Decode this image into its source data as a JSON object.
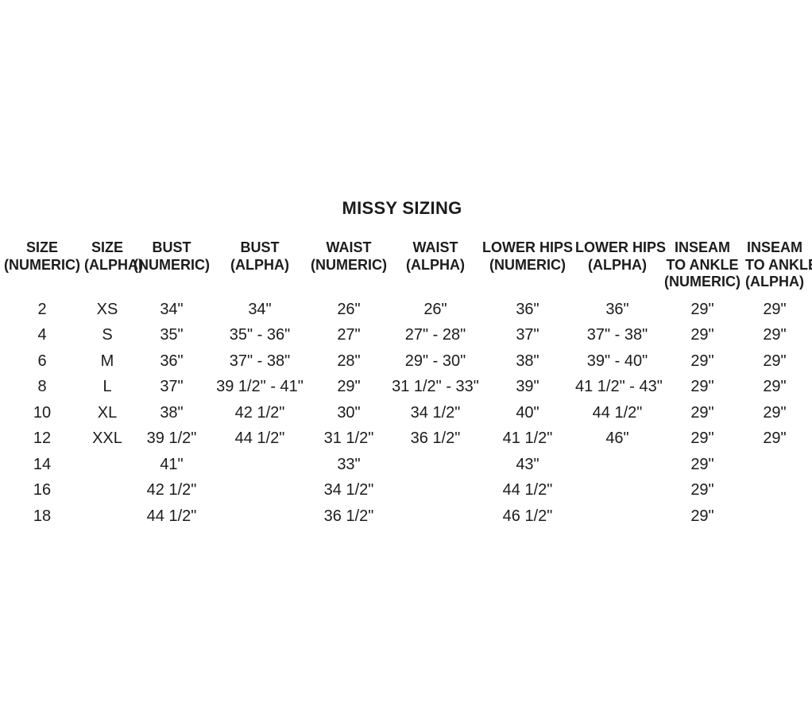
{
  "title": "MISSY SIZING",
  "colors": {
    "background": "#ffffff",
    "text": "#1c1c1c"
  },
  "table": {
    "columns": [
      {
        "id": "size-numeric",
        "label_lines": [
          "SIZE",
          "(NUMERIC)"
        ]
      },
      {
        "id": "size-alpha",
        "label_lines": [
          "SIZE",
          "(ALPHA)"
        ]
      },
      {
        "id": "bust-numeric",
        "label_lines": [
          "BUST",
          "(NUMERIC)"
        ]
      },
      {
        "id": "bust-alpha",
        "label_lines": [
          "BUST",
          "(ALPHA)"
        ]
      },
      {
        "id": "waist-numeric",
        "label_lines": [
          "WAIST",
          "(NUMERIC)"
        ]
      },
      {
        "id": "waist-alpha",
        "label_lines": [
          "WAIST",
          "(ALPHA)"
        ]
      },
      {
        "id": "lower-hips-numeric",
        "label_lines": [
          "LOWER HIPS",
          "(NUMERIC)"
        ]
      },
      {
        "id": "lower-hips-alpha",
        "label_lines": [
          "LOWER HIPS",
          "(ALPHA)"
        ]
      },
      {
        "id": "inseam-numeric",
        "label_lines": [
          "INSEAM",
          "TO ANKLE",
          "(NUMERIC)"
        ]
      },
      {
        "id": "inseam-alpha",
        "label_lines": [
          "INSEAM",
          "TO ANKLE",
          "(ALPHA)"
        ]
      }
    ],
    "rows": [
      [
        "2",
        "XS",
        "34\"",
        "34\"",
        "26\"",
        "26\"",
        "36\"",
        "36\"",
        "29\"",
        "29\""
      ],
      [
        "4",
        "S",
        "35\"",
        "35\" - 36\"",
        "27\"",
        "27\" - 28\"",
        "37\"",
        "37\" - 38\"",
        "29\"",
        "29\""
      ],
      [
        "6",
        "M",
        "36\"",
        "37\" - 38\"",
        "28\"",
        "29\" - 30\"",
        "38\"",
        "39\" - 40\"",
        "29\"",
        "29\""
      ],
      [
        "8",
        "L",
        "37\"",
        "39 1/2\" - 41\"",
        "29\"",
        "31 1/2\" - 33\"",
        "39\"",
        "41 1/2\" - 43\"",
        "29\"",
        "29\""
      ],
      [
        "10",
        "XL",
        "38\"",
        "42 1/2\"",
        "30\"",
        "34 1/2\"",
        "40\"",
        "44 1/2\"",
        "29\"",
        "29\""
      ],
      [
        "12",
        "XXL",
        "39 1/2\"",
        "44 1/2\"",
        "31 1/2\"",
        "36 1/2\"",
        "41 1/2\"",
        "46\"",
        "29\"",
        "29\""
      ],
      [
        "14",
        "",
        "41\"",
        "",
        "33\"",
        "",
        "43\"",
        "",
        "29\"",
        ""
      ],
      [
        "16",
        "",
        "42 1/2\"",
        "",
        "34 1/2\"",
        "",
        "44 1/2\"",
        "",
        "29\"",
        ""
      ],
      [
        "18",
        "",
        "44 1/2\"",
        "",
        "36 1/2\"",
        "",
        "46 1/2\"",
        "",
        "29\"",
        ""
      ]
    ]
  }
}
